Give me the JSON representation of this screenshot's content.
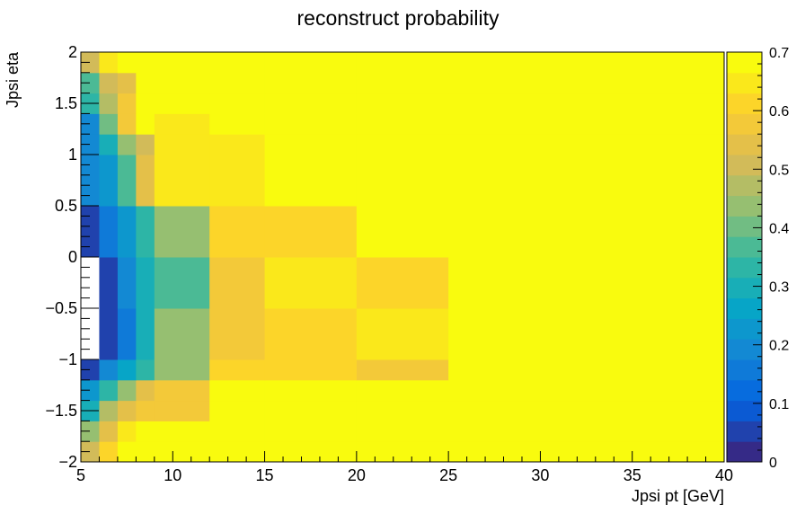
{
  "chart_data": {
    "type": "heatmap",
    "title": "reconstruct probability",
    "xlabel": "Jpsi pt [GeV]",
    "ylabel": "Jpsi eta",
    "xlim": [
      5,
      40
    ],
    "ylim": [
      -2,
      2
    ],
    "zlim": [
      0,
      0.7
    ],
    "x_edges": [
      5,
      6,
      7,
      8,
      9,
      12,
      15,
      20,
      25,
      40
    ],
    "y_edges": [
      -2,
      -1.8,
      -1.6,
      -1.4,
      -1.2,
      -1,
      -0.5,
      0,
      0.5,
      1,
      1.2,
      1.4,
      1.6,
      1.8,
      2
    ],
    "values": [
      [
        0.5,
        0.62,
        0.68,
        0.7,
        0.7,
        0.7,
        0.7,
        0.7,
        0.7
      ],
      [
        0.43,
        0.53,
        0.64,
        0.68,
        0.7,
        0.7,
        0.7,
        0.7,
        0.7
      ],
      [
        0.29,
        0.48,
        0.55,
        0.57,
        0.57,
        0.7,
        0.7,
        0.7,
        0.7
      ],
      [
        0.22,
        0.33,
        0.45,
        0.53,
        0.57,
        0.7,
        0.7,
        0.7,
        0.7
      ],
      [
        0.05,
        0.18,
        0.26,
        0.34,
        0.45,
        0.6,
        0.6,
        0.57,
        0.7
      ],
      [
        0.0,
        0.05,
        0.16,
        0.3,
        0.42,
        0.57,
        0.6,
        0.64,
        0.7
      ],
      [
        0.0,
        0.05,
        0.18,
        0.28,
        0.38,
        0.56,
        0.66,
        0.6,
        0.7
      ],
      [
        0.05,
        0.16,
        0.24,
        0.34,
        0.45,
        0.6,
        0.6,
        0.7,
        0.7
      ],
      [
        0.18,
        0.24,
        0.38,
        0.53,
        0.64,
        0.64,
        0.7,
        0.7,
        0.7
      ],
      [
        0.2,
        0.28,
        0.44,
        0.51,
        0.64,
        0.64,
        0.7,
        0.7,
        0.7
      ],
      [
        0.2,
        0.4,
        0.58,
        0.7,
        0.66,
        0.7,
        0.7,
        0.7,
        0.7
      ],
      [
        0.33,
        0.48,
        0.58,
        0.7,
        0.68,
        0.7,
        0.7,
        0.7,
        0.7
      ],
      [
        0.36,
        0.49,
        0.55,
        0.7,
        0.7,
        0.7,
        0.7,
        0.7,
        0.7
      ],
      [
        0.5,
        0.64,
        0.67,
        0.69,
        0.7,
        0.7,
        0.7,
        0.7,
        0.7
      ]
    ],
    "empty_cells": [
      [
        5,
        0
      ],
      [
        6,
        0
      ]
    ],
    "x_ticks": [
      5,
      10,
      15,
      20,
      25,
      30,
      35,
      40
    ],
    "y_ticks": [
      -2,
      -1.5,
      -1,
      -0.5,
      0,
      0.5,
      1,
      1.5,
      2
    ],
    "z_ticks": [
      0,
      0.1,
      0.2,
      0.3,
      0.4,
      0.5,
      0.6,
      0.7
    ],
    "x_tick_labels": [
      "5",
      "10",
      "15",
      "20",
      "25",
      "30",
      "35",
      "40"
    ],
    "y_tick_labels": [
      "−2",
      "−1.5",
      "−1",
      "−0.5",
      "0",
      "0.5",
      "1",
      "1.5",
      "2"
    ],
    "z_tick_labels": [
      "0",
      "0.1",
      "0.2",
      "0.3",
      "0.4",
      "0.5",
      "0.6",
      "0.7"
    ],
    "palette": [
      "#352a87",
      "#0363e1",
      "#1485d4",
      "#06a7c6",
      "#38b99e",
      "#92bf73",
      "#d9ba56",
      "#fcce2e",
      "#f9fb0e"
    ],
    "palette_levels": 20,
    "grid": false,
    "legend": "colorbar-right"
  }
}
